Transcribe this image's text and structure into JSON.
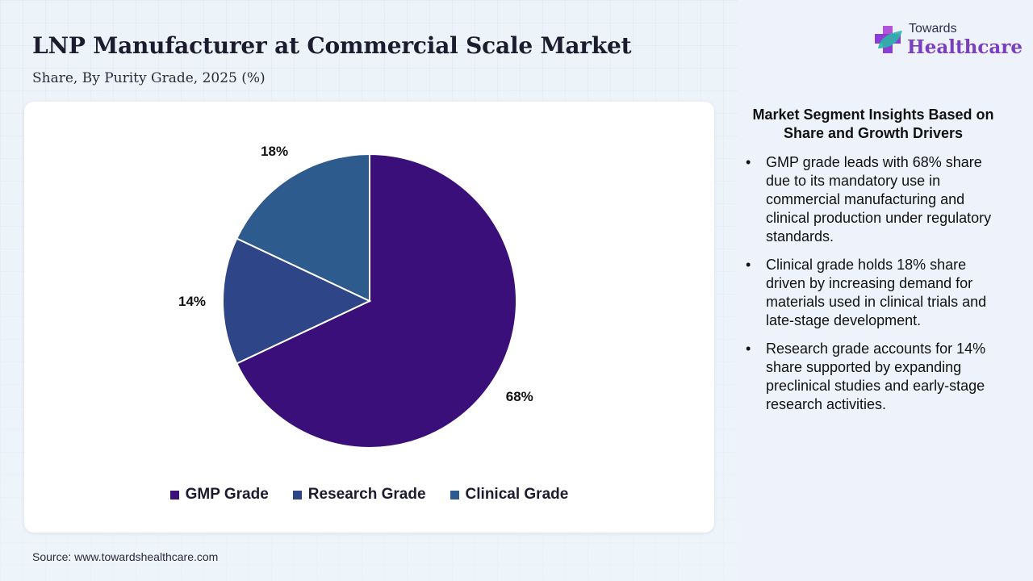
{
  "header": {
    "title": "LNP Manufacturer at Commercial Scale Market",
    "subtitle": "Share, By Purity Grade, 2025 (%)"
  },
  "brand": {
    "name_top": "Towards",
    "name_bottom": "Healthcare",
    "icon": "health-cross-leaf-icon"
  },
  "chart_data": {
    "type": "pie",
    "categories": [
      "GMP Grade",
      "Research Grade",
      "Clinical Grade"
    ],
    "values": [
      68,
      14,
      18
    ],
    "value_labels": [
      "68%",
      "14%",
      "18%"
    ],
    "colors": [
      "#3a0f7a",
      "#2e4588",
      "#2e5b8e"
    ],
    "start_angle_deg": 0,
    "direction": "clockwise",
    "legend_position": "bottom"
  },
  "insights": {
    "title": "Market Segment Insights Based on Share and Growth Drivers",
    "bullet": "•",
    "items": [
      "GMP grade leads with 68% share due to its mandatory use in commercial manufacturing and clinical production under regulatory standards.",
      "Clinical grade holds 18% share driven by increasing demand for materials used in clinical trials and late-stage development.",
      "Research grade accounts for 14% share supported by expanding preclinical studies and early-stage research activities."
    ]
  },
  "footer": {
    "source": "Source: www.towardshealthcare.com"
  }
}
